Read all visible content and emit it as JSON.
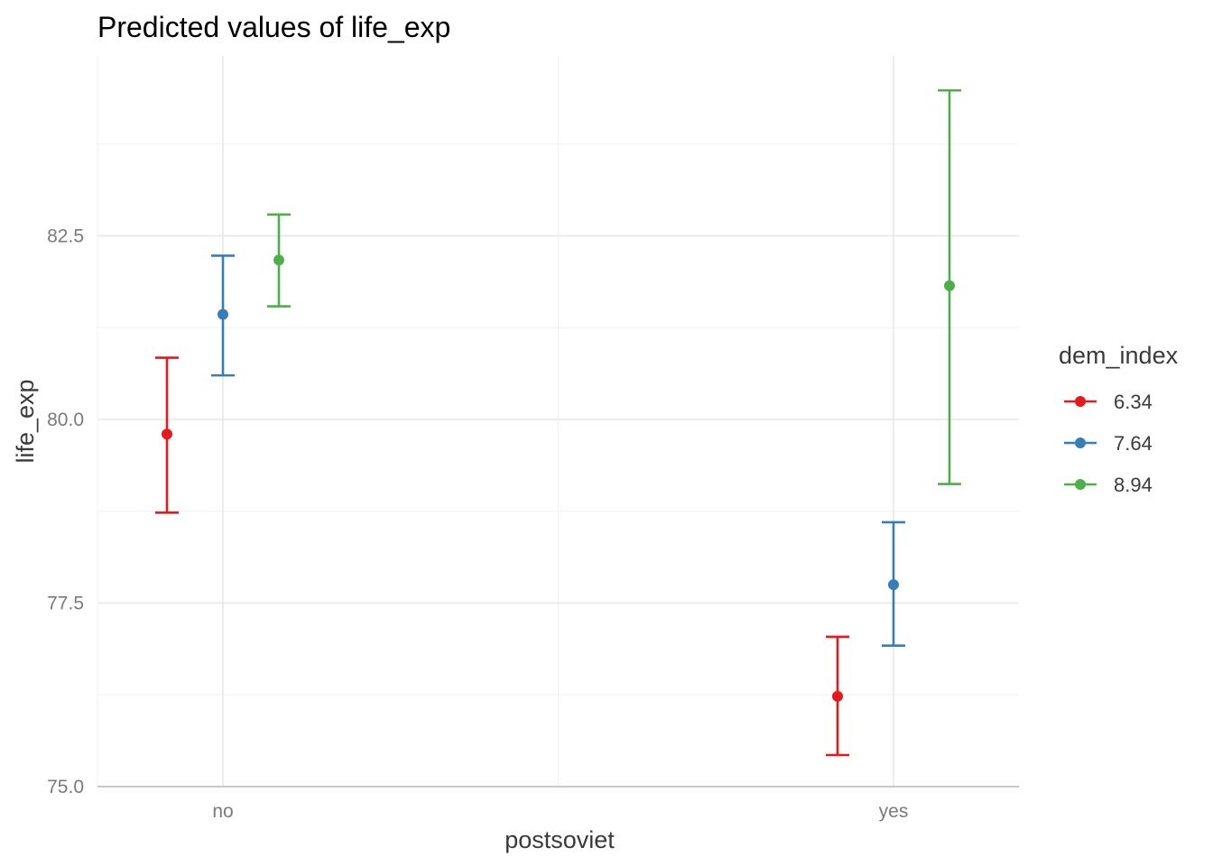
{
  "chart_data": {
    "type": "pointrange",
    "title": "Predicted values of life_exp",
    "xlabel": "postsoviet",
    "ylabel": "life_exp",
    "categories": [
      "no",
      "yes"
    ],
    "ylim": [
      75.0,
      84.95
    ],
    "yticks": [
      75.0,
      77.5,
      80.0,
      82.5
    ],
    "ytick_labels": [
      "75.0",
      "77.5",
      "80.0",
      "82.5"
    ],
    "grid": true,
    "legend": {
      "title": "dem_index",
      "position": "right"
    },
    "series": [
      {
        "name": "6.34",
        "color": "#E41A1C",
        "values": [
          79.8,
          76.23
        ],
        "lower": [
          78.73,
          75.43
        ],
        "upper": [
          80.84,
          77.04
        ]
      },
      {
        "name": "7.64",
        "color": "#377EB8",
        "values": [
          81.43,
          77.75
        ],
        "lower": [
          80.6,
          76.92
        ],
        "upper": [
          82.23,
          78.6
        ]
      },
      {
        "name": "8.94",
        "color": "#4DAF4A",
        "values": [
          82.17,
          81.82
        ],
        "lower": [
          81.54,
          79.12
        ],
        "upper": [
          82.79,
          84.48
        ]
      }
    ]
  }
}
